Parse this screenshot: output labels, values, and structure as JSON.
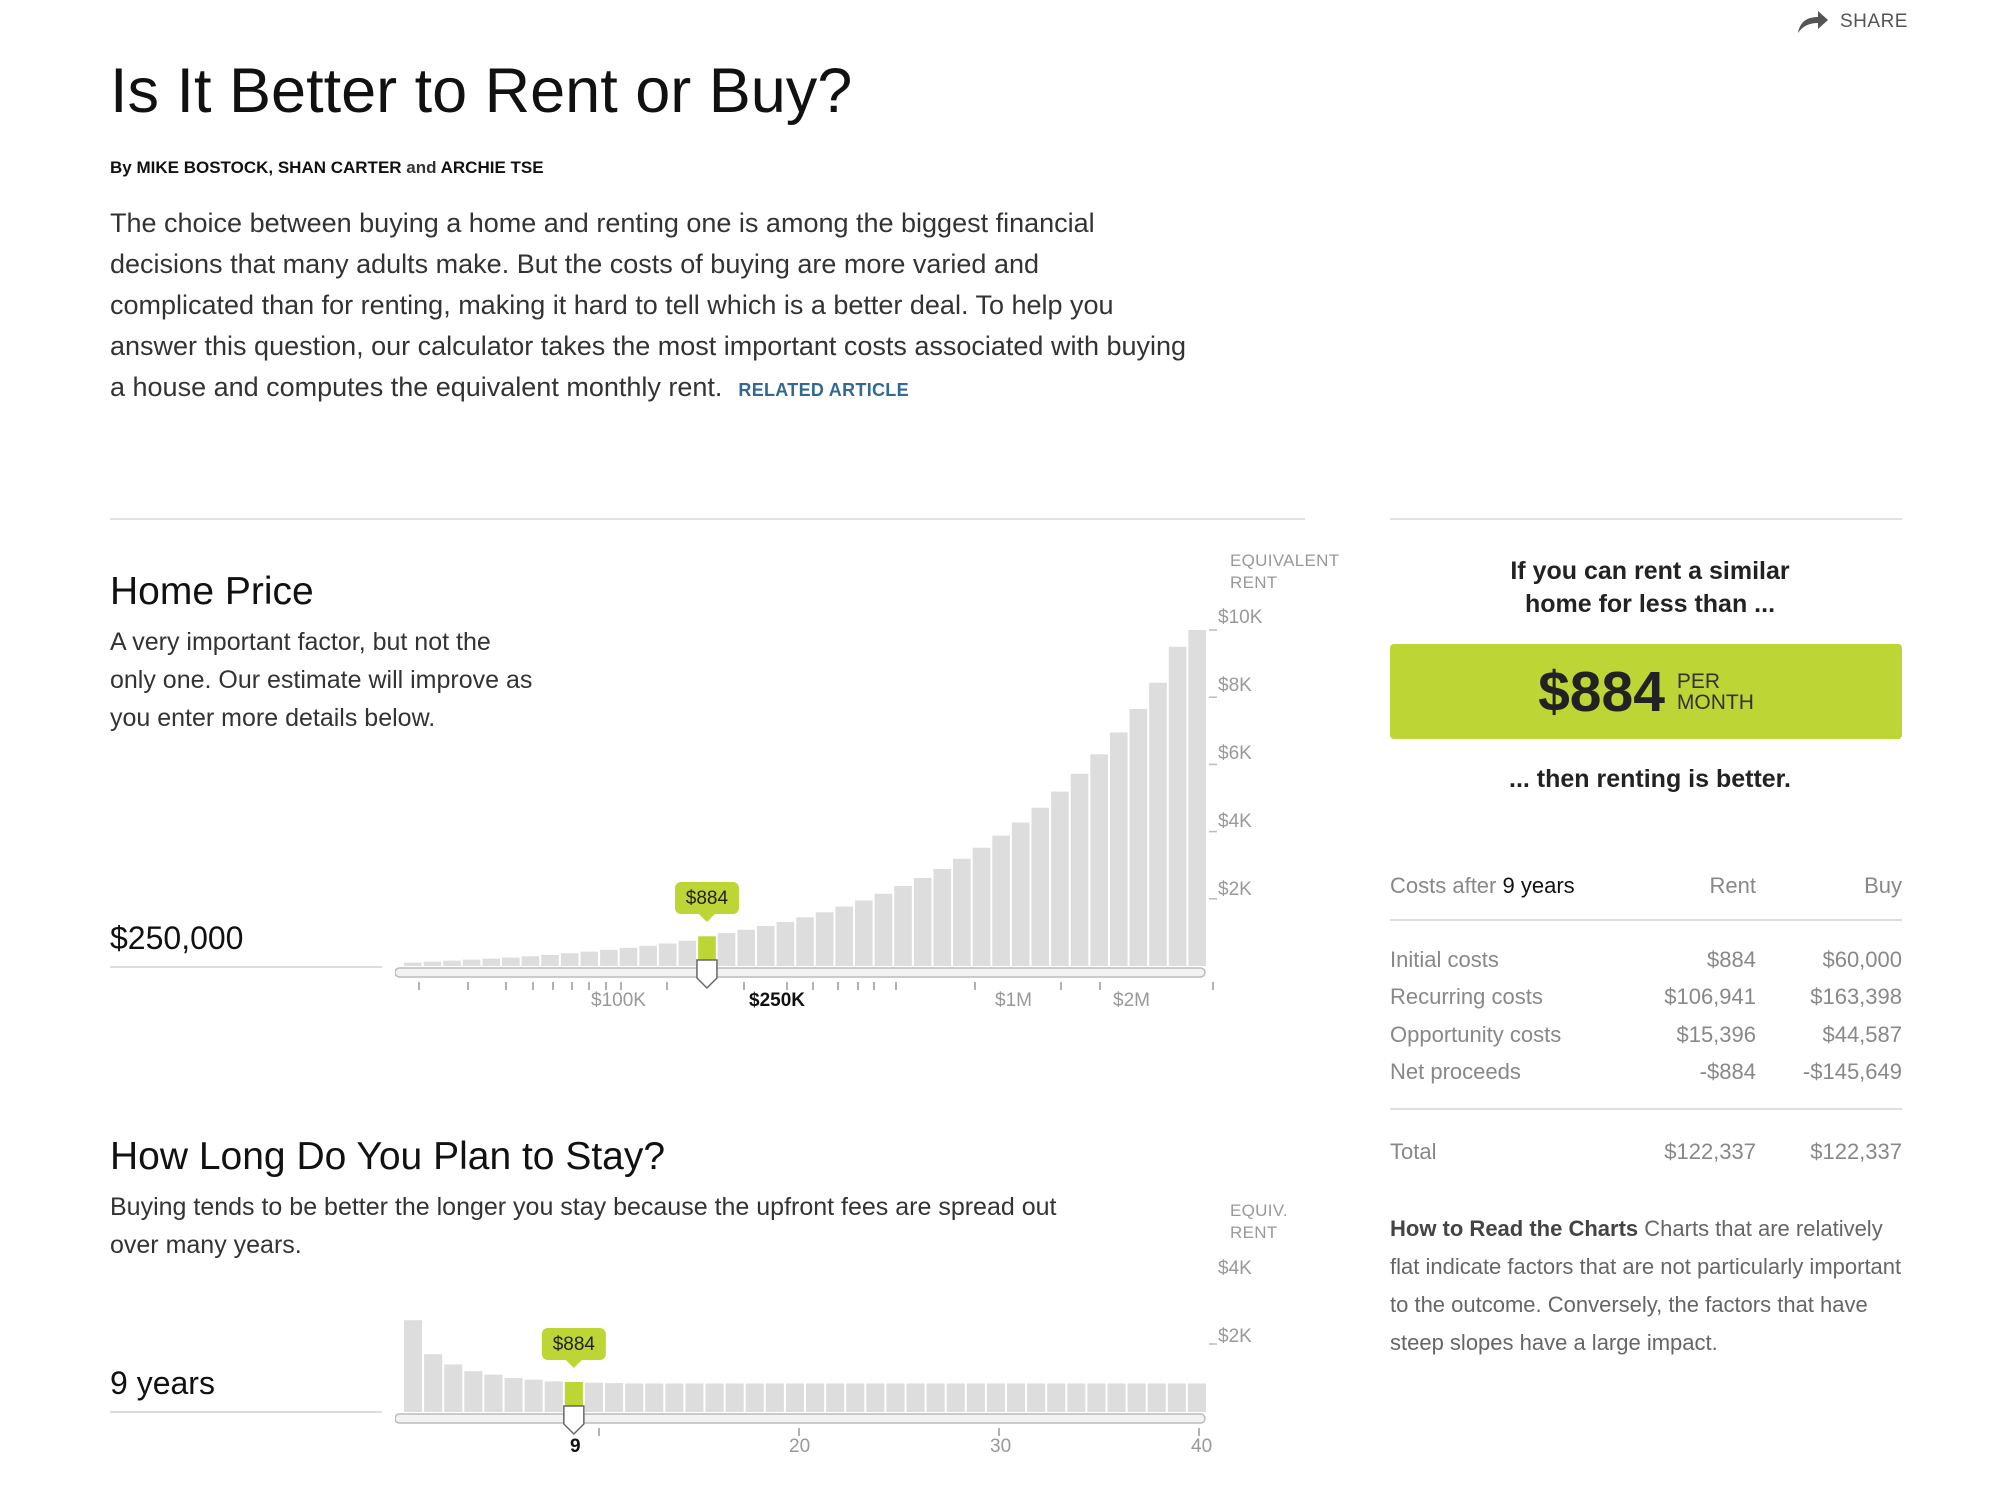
{
  "header": {
    "share_label": "SHARE",
    "title": "Is It Better to Rent or Buy?",
    "byline_by": "By",
    "byline_names": "MIKE BOSTOCK, SHAN CARTER",
    "byline_and": "and",
    "byline_last": "ARCHIE TSE",
    "intro": "The choice between buying a home and renting one is among the biggest financial decisions that many adults make. But the costs of buying are more varied and complicated than for renting, making it hard to tell which is a better deal. To help you answer this question, our calculator takes the most important costs associated with buying a house and computes the equivalent monthly rent.",
    "related_article": "RELATED ARTICLE"
  },
  "home_price": {
    "title": "Home Price",
    "description": "A very important factor, but not the only one. Our estimate will improve as you enter more details below.",
    "value": "$250,000",
    "equiv_label_1": "EQUIVALENT",
    "equiv_label_2": "RENT",
    "tooltip": "$884",
    "y_ticks": [
      "$10K",
      "$8K",
      "$6K",
      "$4K",
      "$2K"
    ],
    "x_ticks": [
      "$100K",
      "$250K",
      "$1M",
      "$2M"
    ],
    "selected_x_tick": "$250K"
  },
  "stay": {
    "title": "How Long Do You Plan to Stay?",
    "description": "Buying tends to be better the longer you stay because the upfront fees are spread out over many years.",
    "value": "9 years",
    "equiv_label_1": "EQUIV.",
    "equiv_label_2": "RENT",
    "tooltip": "$884",
    "y_ticks": [
      "$4K",
      "$2K"
    ],
    "x_ticks": [
      "9",
      "20",
      "30",
      "40"
    ],
    "selected_x_tick": "9"
  },
  "panel": {
    "heading_1": "If you can rent a similar",
    "heading_2": "home for less than ...",
    "amount": "$884",
    "unit_1": "PER",
    "unit_2": "MONTH",
    "subheading": "... then renting is better.",
    "costs_label": "Costs after",
    "costs_years": "9 years",
    "col_rent": "Rent",
    "col_buy": "Buy",
    "rows": [
      {
        "label": "Initial costs",
        "rent": "$884",
        "buy": "$60,000"
      },
      {
        "label": "Recurring costs",
        "rent": "$106,941",
        "buy": "$163,398"
      },
      {
        "label": "Opportunity costs",
        "rent": "$15,396",
        "buy": "$44,587"
      },
      {
        "label": "Net proceeds",
        "rent": "-$884",
        "buy": "-$145,649"
      }
    ],
    "total_label": "Total",
    "total_rent": "$122,337",
    "total_buy": "$122,337",
    "howto_title": "How to Read the Charts",
    "howto_text": "Charts that are relatively flat indicate factors that are not particularly important to the outcome. Conversely, the factors that have steep slopes have a large impact."
  },
  "colors": {
    "accent": "#bdd635",
    "bar": "#dddddd",
    "link": "#326891"
  },
  "chart_data": [
    {
      "type": "bar",
      "name": "home-price",
      "ylabel": "EQUIVALENT RENT",
      "ylim": [
        0,
        10000
      ],
      "y_ticks": [
        2000,
        4000,
        6000,
        8000,
        10000
      ],
      "x_tick_labels": [
        "$100K",
        "$250K",
        "$1M",
        "$2M"
      ],
      "selected_value": 884,
      "values": [
        100,
        130,
        160,
        190,
        220,
        250,
        290,
        330,
        380,
        430,
        480,
        540,
        600,
        670,
        750,
        884,
        980,
        1080,
        1190,
        1310,
        1450,
        1600,
        1770,
        1950,
        2150,
        2380,
        2620,
        2890,
        3190,
        3520,
        3880,
        4270,
        4710,
        5190,
        5720,
        6300,
        6950,
        7650,
        8430,
        9500,
        10000
      ]
    },
    {
      "type": "bar",
      "name": "years",
      "ylabel": "EQUIV. RENT",
      "ylim": [
        0,
        4000
      ],
      "y_ticks": [
        2000,
        4000
      ],
      "x_tick_labels": [
        "9",
        "20",
        "30",
        "40"
      ],
      "selected_value": 884,
      "values": [
        2700,
        1700,
        1400,
        1200,
        1100,
        1000,
        950,
        900,
        884,
        860,
        850,
        840,
        840,
        840,
        840,
        840,
        840,
        840,
        840,
        840,
        840,
        840,
        840,
        840,
        840,
        840,
        840,
        840,
        840,
        840,
        840,
        840,
        840,
        840,
        840,
        840,
        840,
        840,
        840,
        840
      ]
    }
  ]
}
